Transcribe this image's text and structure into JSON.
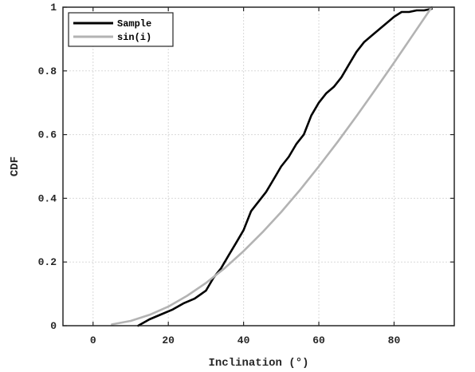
{
  "chart_data": {
    "type": "line",
    "title": "",
    "xlabel": "Inclination (°)",
    "ylabel": "CDF",
    "xlim": [
      -8,
      96
    ],
    "ylim": [
      0,
      1
    ],
    "xticks": [
      0,
      20,
      40,
      60,
      80
    ],
    "yticks": [
      0,
      0.2,
      0.4,
      0.6,
      0.8,
      1
    ],
    "xtick_labels": [
      "0",
      "20",
      "40",
      "60",
      "80"
    ],
    "ytick_labels": [
      "0",
      "0.2",
      "0.4",
      "0.6",
      "0.8",
      "1"
    ],
    "grid": true,
    "legend_position": "top-left",
    "series": [
      {
        "name": "Sample",
        "color": "#000000",
        "x": [
          12,
          15,
          18,
          21,
          24,
          27,
          30,
          32,
          34,
          36,
          38,
          40,
          42,
          44,
          46,
          48,
          50,
          52,
          54,
          56,
          58,
          60,
          62,
          64,
          66,
          68,
          70,
          72,
          74,
          76,
          78,
          80,
          82,
          84,
          86,
          88,
          90
        ],
        "y": [
          0.0,
          0.02,
          0.035,
          0.05,
          0.07,
          0.085,
          0.11,
          0.15,
          0.18,
          0.22,
          0.26,
          0.3,
          0.36,
          0.39,
          0.42,
          0.46,
          0.5,
          0.53,
          0.57,
          0.6,
          0.66,
          0.7,
          0.73,
          0.75,
          0.78,
          0.82,
          0.86,
          0.89,
          0.91,
          0.93,
          0.95,
          0.97,
          0.985,
          0.985,
          0.99,
          0.99,
          0.995
        ]
      },
      {
        "name": "sin(i)",
        "color": "#b3b3b3",
        "x": [
          5,
          10,
          15,
          20,
          25,
          30,
          35,
          40,
          45,
          50,
          55,
          60,
          65,
          70,
          75,
          80,
          85,
          90
        ],
        "y": [
          0.004,
          0.015,
          0.034,
          0.06,
          0.094,
          0.134,
          0.181,
          0.234,
          0.293,
          0.357,
          0.426,
          0.5,
          0.577,
          0.658,
          0.741,
          0.826,
          0.913,
          1.0
        ]
      }
    ]
  }
}
